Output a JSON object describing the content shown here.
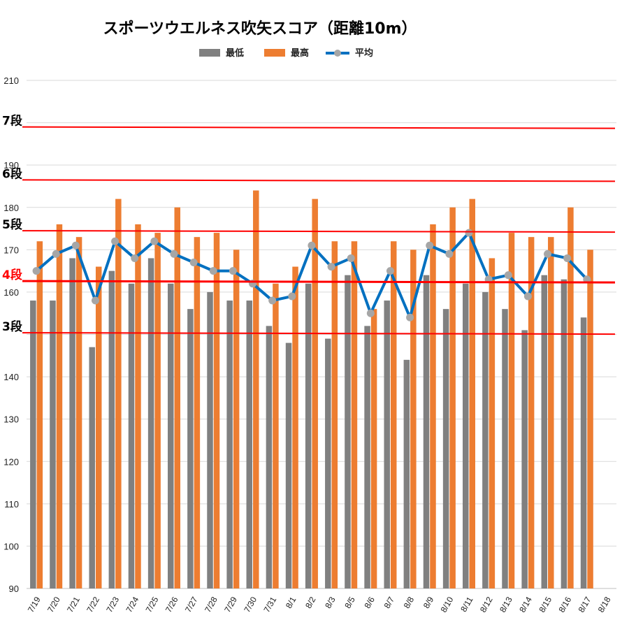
{
  "chart_data": {
    "type": "bar",
    "title": "スポーツウエルネス吹矢スコア（距離10m）",
    "legend": {
      "placement": "top",
      "entries": [
        "最低",
        "最高",
        "平均"
      ]
    },
    "categories": [
      "7/19",
      "7/20",
      "7/21",
      "7/22",
      "7/23",
      "7/24",
      "7/25",
      "7/26",
      "7/27",
      "7/28",
      "7/29",
      "7/30",
      "7/31",
      "8/1",
      "8/2",
      "8/3",
      "8/5",
      "8/6",
      "8/7",
      "8/8",
      "8/9",
      "8/10",
      "8/11",
      "8/12",
      "8/13",
      "8/14",
      "8/15",
      "8/16",
      "8/17",
      "8/18"
    ],
    "series": [
      {
        "name": "最低",
        "kind": "bar",
        "color": "#808080",
        "values": [
          158,
          158,
          168,
          147,
          165,
          162,
          168,
          162,
          156,
          160,
          158,
          158,
          152,
          148,
          162,
          149,
          164,
          152,
          158,
          144,
          164,
          156,
          162,
          160,
          156,
          151,
          164,
          163,
          154,
          null
        ]
      },
      {
        "name": "最高",
        "kind": "bar",
        "color": "#ed7d31",
        "values": [
          172,
          176,
          173,
          166,
          182,
          176,
          174,
          180,
          173,
          174,
          170,
          184,
          162,
          166,
          182,
          172,
          172,
          156,
          172,
          170,
          176,
          180,
          182,
          168,
          174,
          173,
          173,
          180,
          170,
          null
        ]
      },
      {
        "name": "平均",
        "kind": "line",
        "color": "#0070c0",
        "marker_color": "#a6a6a6",
        "values": [
          165,
          169,
          171,
          158,
          172,
          168,
          172,
          169,
          167,
          165,
          165,
          162,
          158,
          159,
          171,
          166,
          168,
          155,
          165,
          154,
          171,
          169,
          174,
          163,
          164,
          159,
          169,
          168,
          163,
          null
        ]
      }
    ],
    "ylim": [
      90,
      210
    ],
    "y_tick_labels": [
      "90",
      "100",
      "110",
      "120",
      "130",
      "140",
      "",
      "160",
      "170",
      "180",
      "190",
      "",
      "210"
    ],
    "grid": true,
    "reference_lines": [
      {
        "label": "3段",
        "value": 150.4,
        "color": "#ff0000",
        "label_color": "#000000"
      },
      {
        "label": "4段",
        "value": 162.6,
        "color": "#ff0000",
        "label_color": "#ff0000"
      },
      {
        "label": "5段",
        "value": 174.5,
        "color": "#ff0000",
        "label_color": "#000000"
      },
      {
        "label": "6段",
        "value": 186.5,
        "color": "#ff0000",
        "label_color": "#000000"
      },
      {
        "label": "7段",
        "value": 199.0,
        "color": "#ff0000",
        "label_color": "#000000"
      }
    ]
  }
}
